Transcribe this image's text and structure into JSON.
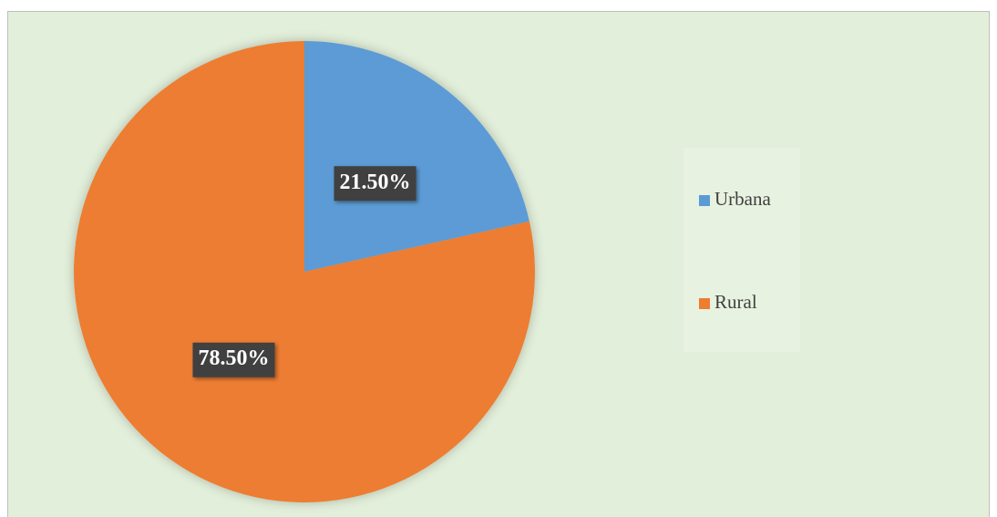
{
  "chart_data": {
    "type": "pie",
    "categories": [
      "Urbana",
      "Rural"
    ],
    "values": [
      21.5,
      78.5
    ],
    "value_labels": [
      "21.50%",
      "78.50%"
    ],
    "colors": [
      "#5b9bd5",
      "#ed7d31"
    ],
    "legend": "right"
  }
}
